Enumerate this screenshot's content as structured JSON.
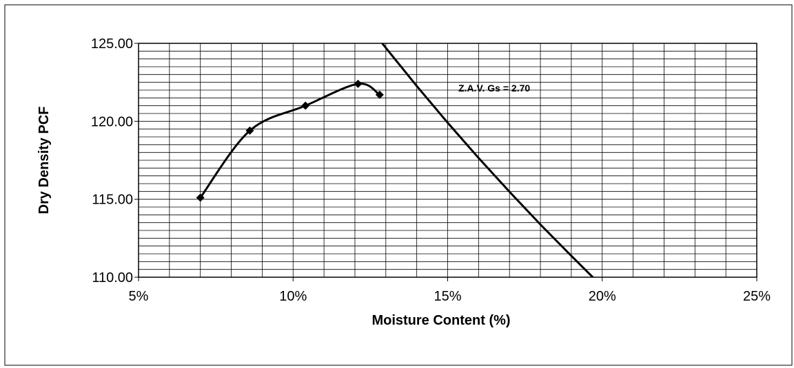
{
  "chart_data": {
    "type": "line",
    "x_label": "Moisture Content (%)",
    "y_label": "Dry Density PCF",
    "annotation": "Z.A.V. Gs = 2.70",
    "xlim": [
      5,
      25
    ],
    "ylim": [
      110,
      125
    ],
    "xticks": [
      {
        "value": 5,
        "label": "5%"
      },
      {
        "value": 10,
        "label": "10%"
      },
      {
        "value": 15,
        "label": "15%"
      },
      {
        "value": 20,
        "label": "20%"
      },
      {
        "value": 25,
        "label": "25%"
      }
    ],
    "yticks": [
      {
        "value": 110,
        "label": "110.00"
      },
      {
        "value": 115,
        "label": "115.00"
      },
      {
        "value": 120,
        "label": "120.00"
      },
      {
        "value": 125,
        "label": "125.00"
      }
    ],
    "grid": true,
    "minor_grid": {
      "x": 1,
      "y": 0.5
    },
    "series": [
      {
        "color": "#000000",
        "smooth": true,
        "markers": true,
        "x": [
          7.0,
          8.6,
          10.4,
          12.1,
          12.8
        ],
        "values": [
          115.1,
          119.4,
          121.0,
          122.4,
          121.7
        ]
      },
      {
        "color": "#000000",
        "smooth": false,
        "markers": false,
        "x": [
          12.8,
          13,
          14,
          15,
          16,
          17,
          18,
          19,
          20
        ],
        "values": [
          125.21,
          124.71,
          122.26,
          119.91,
          117.65,
          115.48,
          113.38,
          111.37,
          109.4
        ]
      }
    ]
  }
}
